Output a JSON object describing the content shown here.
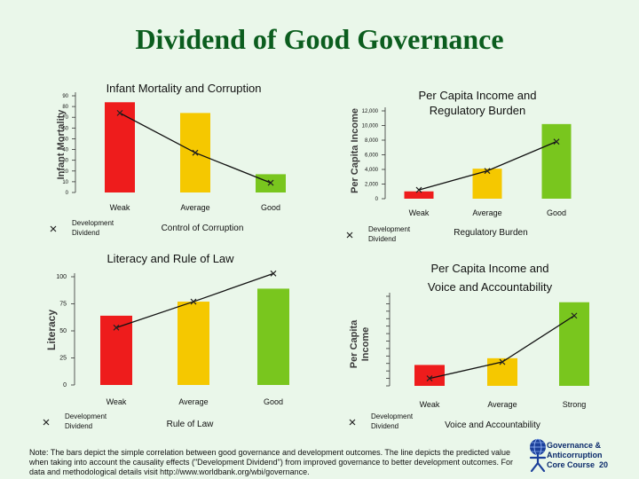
{
  "slide": {
    "title": "Dividend of Good Governance"
  },
  "chart_data": [
    {
      "id": "imr",
      "type": "bar",
      "title": "Infant Mortality and Corruption",
      "ylabel": "Infant Mortality",
      "xlabel": "Control of Corruption",
      "categories": [
        "Weak",
        "Average",
        "Good"
      ],
      "ylim": [
        0,
        90
      ],
      "yticks": [
        {
          "v": 0,
          "label": "0"
        },
        {
          "v": 10,
          "label": "10"
        },
        {
          "v": 20,
          "label": "20"
        },
        {
          "v": 30,
          "label": "30"
        },
        {
          "v": 40,
          "label": "40"
        },
        {
          "v": 50,
          "label": "50"
        },
        {
          "v": 60,
          "label": "60"
        },
        {
          "v": 70,
          "label": "70"
        },
        {
          "v": 80,
          "label": "80"
        },
        {
          "v": 90,
          "label": "90"
        }
      ],
      "series": [
        {
          "name": "Bars",
          "values": [
            84,
            74,
            17
          ]
        },
        {
          "name": "Development Dividend",
          "values": [
            74,
            37,
            9
          ]
        }
      ],
      "legend": [
        "Development",
        "Dividend"
      ],
      "colors": [
        "#ee1c1c",
        "#f5c800",
        "#79c61e"
      ]
    },
    {
      "id": "inc1",
      "type": "bar",
      "title": "Per Capita Income and Regulatory Burden",
      "title_lines": [
        "Per Capita Income and",
        "Regulatory Burden"
      ],
      "ylabel": "Per Capita Income",
      "xlabel": "Regulatory Burden",
      "categories": [
        "Weak",
        "Average",
        "Good"
      ],
      "ylim": [
        0,
        12000
      ],
      "yticks": [
        {
          "v": 0,
          "label": "0"
        },
        {
          "v": 2000,
          "label": "2,000"
        },
        {
          "v": 4000,
          "label": "4,000"
        },
        {
          "v": 6000,
          "label": "6,000"
        },
        {
          "v": 8000,
          "label": "8,000"
        },
        {
          "v": 10000,
          "label": "10,000"
        },
        {
          "v": 12000,
          "label": "12,000"
        }
      ],
      "series": [
        {
          "name": "Bars",
          "values": [
            1000,
            4100,
            10200
          ]
        },
        {
          "name": "Development Dividend",
          "values": [
            1200,
            3800,
            7800
          ]
        }
      ],
      "legend": [
        "Development",
        "Dividend"
      ],
      "colors": [
        "#ee1c1c",
        "#f5c800",
        "#79c61e"
      ]
    },
    {
      "id": "lit",
      "type": "bar",
      "title": "Literacy and Rule of Law",
      "ylabel": "Literacy",
      "xlabel": "Rule of Law",
      "categories": [
        "Weak",
        "Average",
        "Good"
      ],
      "ylim": [
        0,
        100
      ],
      "yticks": [
        {
          "v": 0,
          "label": "0"
        },
        {
          "v": 25,
          "label": "25"
        },
        {
          "v": 50,
          "label": "50"
        },
        {
          "v": 75,
          "label": "75"
        },
        {
          "v": 100,
          "label": "100"
        }
      ],
      "series": [
        {
          "name": "Bars",
          "values": [
            64,
            77,
            89
          ]
        },
        {
          "name": "Development Dividend",
          "values": [
            53,
            77,
            103
          ]
        }
      ],
      "legend": [
        "Development",
        "Dividend"
      ],
      "colors": [
        "#ee1c1c",
        "#f5c800",
        "#79c61e"
      ]
    },
    {
      "id": "inc2",
      "type": "bar",
      "title": "Per Capita Income and Voice and Accountability",
      "title_lines": [
        "Per Capita Income and",
        "Voice and Accountability"
      ],
      "ylabel": "Per Capita Income",
      "ylabel_lines": [
        "Per Capita",
        "Income"
      ],
      "xlabel": "Voice and Accountability",
      "categories": [
        "Weak",
        "Average",
        "Strong"
      ],
      "ylim": [
        0,
        12
      ],
      "yticks": [
        {
          "v": 0,
          "label": ""
        },
        {
          "v": 1,
          "label": ""
        },
        {
          "v": 2,
          "label": ""
        },
        {
          "v": 3,
          "label": ""
        },
        {
          "v": 4,
          "label": ""
        },
        {
          "v": 5,
          "label": ""
        },
        {
          "v": 6,
          "label": ""
        },
        {
          "v": 7,
          "label": ""
        },
        {
          "v": 8,
          "label": ""
        },
        {
          "v": 9,
          "label": ""
        },
        {
          "v": 10,
          "label": ""
        },
        {
          "v": 11,
          "label": ""
        },
        {
          "v": 12,
          "label": ""
        }
      ],
      "series": [
        {
          "name": "Bars",
          "values": [
            2.8,
            3.7,
            11.2
          ]
        },
        {
          "name": "Development Dividend",
          "values": [
            1.0,
            3.2,
            9.4
          ]
        }
      ],
      "legend": [
        "Development",
        "Dividend"
      ],
      "colors": [
        "#ee1c1c",
        "#f5c800",
        "#79c61e"
      ]
    }
  ],
  "note": "Note: The bars depict the simple correlation between good governance and development outcomes. The line depicts the predicted value when taking into account the causality effects (\"Development Dividend\") from improved governance to better development outcomes. For data and methodological details visit http://www.worldbank.org/wbi/governance.",
  "footer": {
    "line1": "Governance &",
    "line2": "Anticorruption",
    "line3": "Core Course",
    "page": "20"
  }
}
